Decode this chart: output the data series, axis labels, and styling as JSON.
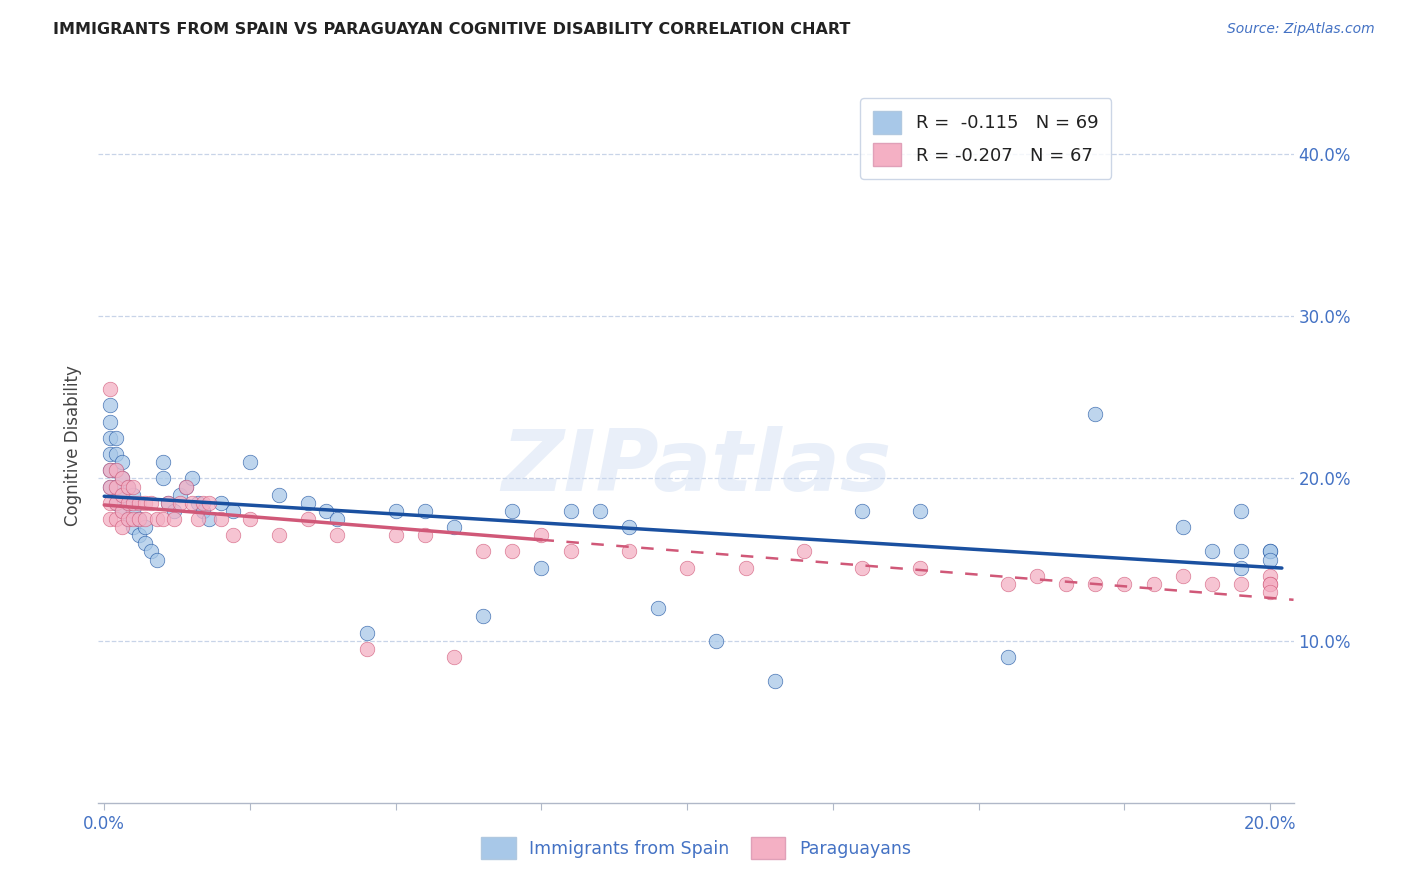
{
  "title": "IMMIGRANTS FROM SPAIN VS PARAGUAYAN COGNITIVE DISABILITY CORRELATION CHART",
  "source": "Source: ZipAtlas.com",
  "ylabel": "Cognitive Disability",
  "xlim": [
    -0.001,
    0.204
  ],
  "ylim": [
    0.0,
    0.44
  ],
  "blue_scatter_color": "#a8c8e8",
  "pink_scatter_color": "#f4b0c4",
  "blue_line_color": "#1a50a0",
  "pink_line_color": "#d05878",
  "pink_line_solid_end": 0.075,
  "blue_x": [
    0.001,
    0.001,
    0.001,
    0.001,
    0.001,
    0.001,
    0.002,
    0.002,
    0.002,
    0.002,
    0.002,
    0.003,
    0.003,
    0.003,
    0.003,
    0.004,
    0.004,
    0.004,
    0.005,
    0.005,
    0.005,
    0.006,
    0.006,
    0.007,
    0.007,
    0.008,
    0.009,
    0.01,
    0.01,
    0.011,
    0.012,
    0.013,
    0.014,
    0.015,
    0.016,
    0.017,
    0.018,
    0.02,
    0.022,
    0.025,
    0.03,
    0.035,
    0.038,
    0.04,
    0.045,
    0.05,
    0.055,
    0.06,
    0.065,
    0.07,
    0.075,
    0.08,
    0.085,
    0.09,
    0.095,
    0.105,
    0.115,
    0.13,
    0.14,
    0.155,
    0.17,
    0.185,
    0.19,
    0.195,
    0.195,
    0.195,
    0.2,
    0.2,
    0.2
  ],
  "blue_y": [
    0.195,
    0.205,
    0.215,
    0.225,
    0.235,
    0.245,
    0.185,
    0.195,
    0.205,
    0.215,
    0.225,
    0.18,
    0.19,
    0.2,
    0.21,
    0.175,
    0.185,
    0.195,
    0.17,
    0.18,
    0.19,
    0.165,
    0.175,
    0.16,
    0.17,
    0.155,
    0.15,
    0.2,
    0.21,
    0.185,
    0.18,
    0.19,
    0.195,
    0.2,
    0.185,
    0.18,
    0.175,
    0.185,
    0.18,
    0.21,
    0.19,
    0.185,
    0.18,
    0.175,
    0.105,
    0.18,
    0.18,
    0.17,
    0.115,
    0.18,
    0.145,
    0.18,
    0.18,
    0.17,
    0.12,
    0.1,
    0.075,
    0.18,
    0.18,
    0.09,
    0.24,
    0.17,
    0.155,
    0.18,
    0.155,
    0.145,
    0.155,
    0.155,
    0.15
  ],
  "pink_x": [
    0.001,
    0.001,
    0.001,
    0.001,
    0.001,
    0.002,
    0.002,
    0.002,
    0.002,
    0.003,
    0.003,
    0.003,
    0.003,
    0.004,
    0.004,
    0.004,
    0.005,
    0.005,
    0.005,
    0.006,
    0.006,
    0.007,
    0.007,
    0.008,
    0.009,
    0.01,
    0.011,
    0.012,
    0.013,
    0.014,
    0.015,
    0.016,
    0.017,
    0.018,
    0.02,
    0.022,
    0.025,
    0.03,
    0.035,
    0.04,
    0.045,
    0.05,
    0.055,
    0.06,
    0.065,
    0.07,
    0.075,
    0.08,
    0.09,
    0.1,
    0.11,
    0.12,
    0.13,
    0.14,
    0.155,
    0.16,
    0.165,
    0.17,
    0.175,
    0.18,
    0.185,
    0.19,
    0.195,
    0.2,
    0.2,
    0.2,
    0.2
  ],
  "pink_y": [
    0.175,
    0.185,
    0.195,
    0.205,
    0.255,
    0.175,
    0.185,
    0.195,
    0.205,
    0.17,
    0.18,
    0.19,
    0.2,
    0.175,
    0.185,
    0.195,
    0.175,
    0.185,
    0.195,
    0.175,
    0.185,
    0.175,
    0.185,
    0.185,
    0.175,
    0.175,
    0.185,
    0.175,
    0.185,
    0.195,
    0.185,
    0.175,
    0.185,
    0.185,
    0.175,
    0.165,
    0.175,
    0.165,
    0.175,
    0.165,
    0.095,
    0.165,
    0.165,
    0.09,
    0.155,
    0.155,
    0.165,
    0.155,
    0.155,
    0.145,
    0.145,
    0.155,
    0.145,
    0.145,
    0.135,
    0.14,
    0.135,
    0.135,
    0.135,
    0.135,
    0.14,
    0.135,
    0.135,
    0.14,
    0.135,
    0.135,
    0.13
  ]
}
